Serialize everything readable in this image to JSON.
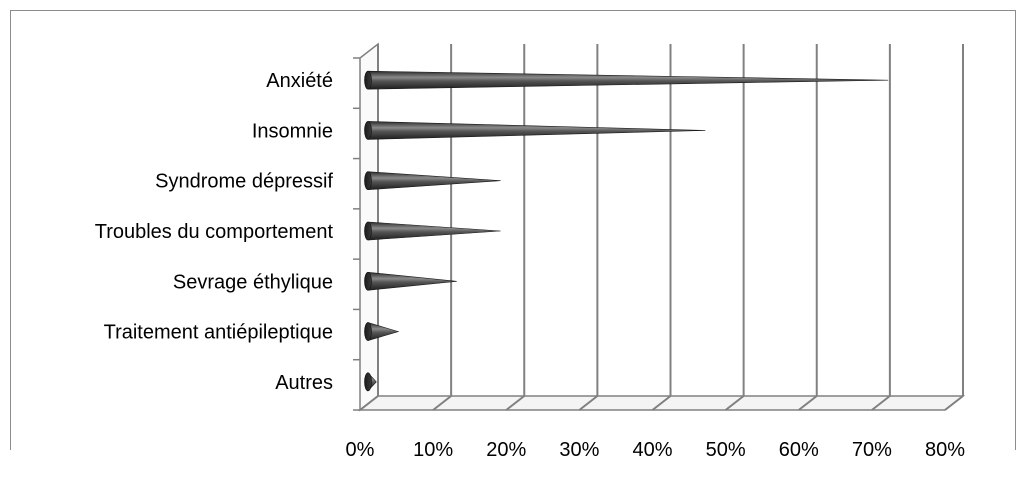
{
  "chart_data": {
    "type": "bar",
    "orientation": "horizontal",
    "style": "3d-cone",
    "title": "",
    "xlabel": "",
    "ylabel": "",
    "categories": [
      "Anxiété",
      "Insomnie",
      "Syndrome dépressif",
      "Troubles du comportement",
      "Sevrage éthylique",
      "Traitement antiépileptique",
      "Autres"
    ],
    "values": [
      71,
      46,
      18,
      18,
      12,
      4,
      1
    ],
    "value_unit": "%",
    "xlim": [
      0,
      80
    ],
    "xticks": [
      "0%",
      "10%",
      "20%",
      "30%",
      "40%",
      "50%",
      "60%",
      "70%",
      "80%"
    ],
    "grid": "vertical",
    "legend": "none",
    "bar_color": "#404040",
    "grid_color": "#808080"
  }
}
